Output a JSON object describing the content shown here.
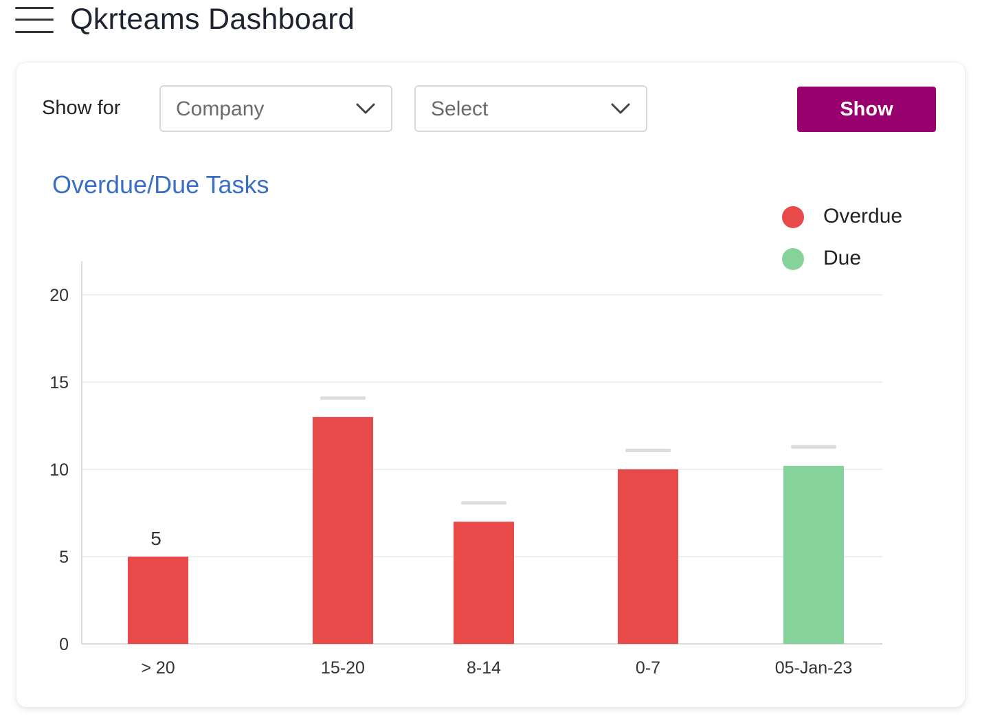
{
  "app": {
    "title": "Qkrteams Dashboard"
  },
  "filters": {
    "show_for_label": "Show for",
    "company_select": {
      "value": "Company"
    },
    "second_select": {
      "value": "Select"
    },
    "show_button_label": "Show"
  },
  "colors": {
    "overdue": "#e84a4a",
    "due": "#86d29b",
    "accent": "#98006d",
    "title": "#3a6fc4"
  },
  "icons": {
    "menu": "hamburger-menu-icon",
    "dropdown": "chevron-down-icon"
  },
  "chart_data": {
    "type": "bar",
    "title": "Overdue/Due Tasks",
    "categories": [
      "> 20",
      "15-20",
      "8-14",
      "0-7",
      "05-Jan-23"
    ],
    "series": [
      {
        "name": "Overdue",
        "values": [
          5,
          13,
          7,
          10,
          null
        ]
      },
      {
        "name": "Due",
        "values": [
          null,
          null,
          null,
          null,
          10.2
        ]
      }
    ],
    "data_labels": [
      "5",
      "",
      "",
      "",
      ""
    ],
    "ylim": [
      0,
      22
    ],
    "yticks": [
      0,
      5,
      10,
      15,
      20
    ],
    "grid": true,
    "legend": "top-right"
  }
}
